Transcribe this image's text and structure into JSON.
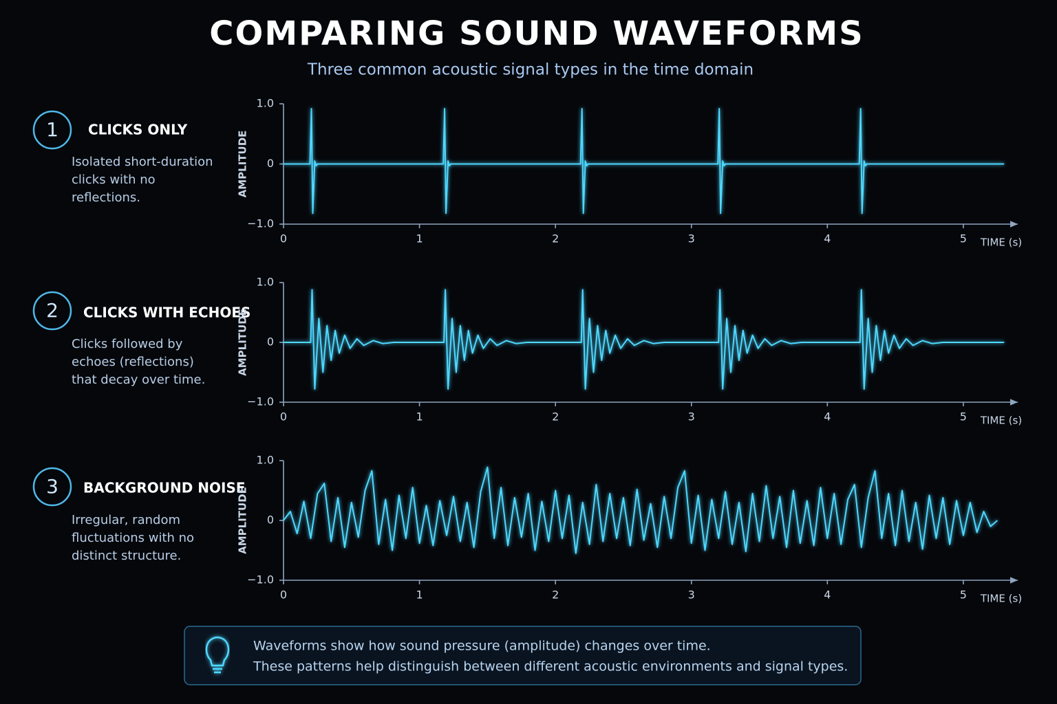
{
  "title": "COMPARING SOUND WAVEFORMS",
  "subtitle": "Three common acoustic signal types in the time domain",
  "panels": [
    {
      "number": "1",
      "title": "CLICKS ONLY",
      "description": [
        "Isolated short-duration",
        "clicks with no",
        "reflections."
      ]
    },
    {
      "number": "2",
      "title": "CLICKS WITH ECHOES",
      "description": [
        "Clicks followed by",
        "echoes (reflections)",
        "that decay over time."
      ]
    },
    {
      "number": "3",
      "title": "BACKGROUND NOISE",
      "description": [
        "Irregular, random",
        "fluctuations with no",
        "distinct structure."
      ]
    }
  ],
  "note": {
    "lines": [
      "Waveforms show how sound pressure (amplitude) changes over time.",
      "These patterns help distinguish between different acoustic environments and signal types."
    ]
  },
  "chart_data": [
    {
      "type": "line",
      "ylabel": "AMPLITUDE",
      "xlabel": "TIME (s)",
      "color": "#4fd8ff",
      "xlim": [
        0,
        5.37
      ],
      "ylim": [
        -1,
        1
      ],
      "xticks": [
        0,
        1,
        2,
        3,
        4,
        5
      ],
      "yticks": [
        {
          "value": 1,
          "label": "1.0"
        },
        0,
        {
          "value": -1,
          "label": "−1.0"
        }
      ],
      "x": [
        0,
        0.195,
        0.205,
        0.215,
        0.23,
        0.24,
        0.25,
        1.175,
        1.185,
        1.195,
        1.21,
        1.22,
        1.23,
        2.185,
        2.195,
        2.205,
        2.22,
        2.23,
        2.24,
        3.195,
        3.205,
        3.215,
        3.23,
        3.24,
        3.25,
        4.235,
        4.245,
        4.255,
        4.27,
        4.28,
        4.29,
        5.3
      ],
      "values": [
        0,
        0,
        0.92,
        -0.82,
        0.05,
        -0.03,
        0,
        0,
        0.92,
        -0.82,
        0.05,
        -0.03,
        0,
        0,
        0.92,
        -0.82,
        0.05,
        -0.03,
        0,
        0,
        0.92,
        -0.82,
        0.05,
        -0.03,
        0,
        0,
        0.92,
        -0.82,
        0.05,
        -0.03,
        0,
        0
      ]
    },
    {
      "type": "line",
      "ylabel": "AMPLITUDE",
      "xlabel": "TIME (s)",
      "color": "#4fd8ff",
      "xlim": [
        0,
        5.37
      ],
      "ylim": [
        -1,
        1
      ],
      "xticks": [
        0,
        1,
        2,
        3,
        4,
        5
      ],
      "yticks": [
        {
          "value": 1,
          "label": "1.0"
        },
        0,
        {
          "value": -1,
          "label": "−1.0"
        }
      ],
      "x": [
        0,
        0.2,
        0.21,
        0.23,
        0.26,
        0.29,
        0.32,
        0.35,
        0.38,
        0.41,
        0.45,
        0.49,
        0.54,
        0.59,
        0.66,
        0.73,
        0.81,
        1.18,
        1.19,
        1.21,
        1.24,
        1.27,
        1.3,
        1.33,
        1.36,
        1.39,
        1.43,
        1.47,
        1.52,
        1.57,
        1.64,
        1.71,
        1.79,
        2.19,
        2.2,
        2.22,
        2.25,
        2.28,
        2.31,
        2.34,
        2.37,
        2.4,
        2.44,
        2.48,
        2.53,
        2.58,
        2.65,
        2.72,
        2.8,
        3.2,
        3.21,
        3.23,
        3.26,
        3.29,
        3.32,
        3.35,
        3.38,
        3.41,
        3.45,
        3.49,
        3.54,
        3.59,
        3.66,
        3.73,
        3.81,
        4.24,
        4.25,
        4.27,
        4.3,
        4.33,
        4.36,
        4.39,
        4.42,
        4.45,
        4.49,
        4.53,
        4.58,
        4.63,
        4.7,
        4.77,
        4.85,
        5.3
      ],
      "values": [
        0,
        0,
        0.88,
        -0.78,
        0.4,
        -0.5,
        0.28,
        -0.3,
        0.2,
        -0.18,
        0.12,
        -0.1,
        0.06,
        -0.05,
        0.03,
        -0.02,
        0,
        0,
        0.88,
        -0.78,
        0.4,
        -0.5,
        0.28,
        -0.3,
        0.2,
        -0.18,
        0.12,
        -0.1,
        0.06,
        -0.05,
        0.03,
        -0.02,
        0,
        0,
        0.88,
        -0.78,
        0.4,
        -0.5,
        0.28,
        -0.3,
        0.2,
        -0.18,
        0.12,
        -0.1,
        0.06,
        -0.05,
        0.03,
        -0.02,
        0,
        0,
        0.88,
        -0.78,
        0.4,
        -0.5,
        0.28,
        -0.3,
        0.2,
        -0.18,
        0.12,
        -0.1,
        0.06,
        -0.05,
        0.03,
        -0.02,
        0,
        0,
        0.88,
        -0.78,
        0.4,
        -0.5,
        0.28,
        -0.3,
        0.2,
        -0.18,
        0.12,
        -0.1,
        0.06,
        -0.05,
        0.03,
        -0.02,
        0,
        0
      ]
    },
    {
      "type": "line",
      "ylabel": "AMPLITUDE",
      "xlabel": "TIME (s)",
      "color": "#4fd8ff",
      "xlim": [
        0,
        5.37
      ],
      "ylim": [
        -1,
        1
      ],
      "xticks": [
        0,
        1,
        2,
        3,
        4,
        5
      ],
      "yticks": [
        {
          "value": 1,
          "label": "1.0"
        },
        0,
        {
          "value": -1,
          "label": "−1.0"
        }
      ],
      "x": [
        0,
        0.05,
        0.1,
        0.15,
        0.2,
        0.25,
        0.3,
        0.35,
        0.4,
        0.45,
        0.5,
        0.55,
        0.6,
        0.65,
        0.7,
        0.75,
        0.8,
        0.85,
        0.9,
        0.95,
        1,
        1.05,
        1.1,
        1.15,
        1.2,
        1.25,
        1.3,
        1.35,
        1.4,
        1.45,
        1.5,
        1.55,
        1.6,
        1.65,
        1.7,
        1.75,
        1.8,
        1.85,
        1.9,
        1.95,
        2,
        2.05,
        2.1,
        2.15,
        2.2,
        2.25,
        2.3,
        2.35,
        2.4,
        2.45,
        2.5,
        2.55,
        2.6,
        2.65,
        2.7,
        2.75,
        2.8,
        2.85,
        2.9,
        2.95,
        3,
        3.05,
        3.1,
        3.15,
        3.2,
        3.25,
        3.3,
        3.35,
        3.4,
        3.45,
        3.5,
        3.55,
        3.6,
        3.65,
        3.7,
        3.75,
        3.8,
        3.85,
        3.9,
        3.95,
        4,
        4.05,
        4.1,
        4.15,
        4.2,
        4.25,
        4.3,
        4.35,
        4.4,
        4.45,
        4.5,
        4.55,
        4.6,
        4.65,
        4.7,
        4.75,
        4.8,
        4.85,
        4.9,
        4.95,
        5,
        5.05,
        5.1,
        5.15,
        5.2,
        5.25
      ],
      "values": [
        0,
        0.15,
        -0.22,
        0.32,
        -0.3,
        0.45,
        0.62,
        -0.35,
        0.38,
        -0.45,
        0.3,
        -0.28,
        0.5,
        0.83,
        -0.4,
        0.35,
        -0.5,
        0.42,
        -0.3,
        0.55,
        -0.38,
        0.25,
        -0.42,
        0.33,
        -0.25,
        0.4,
        -0.35,
        0.3,
        -0.45,
        0.48,
        0.89,
        -0.3,
        0.55,
        -0.42,
        0.38,
        -0.28,
        0.45,
        -0.5,
        0.32,
        -0.35,
        0.5,
        -0.3,
        0.42,
        -0.55,
        0.3,
        -0.4,
        0.6,
        -0.35,
        0.45,
        -0.3,
        0.38,
        -0.42,
        0.52,
        -0.33,
        0.28,
        -0.45,
        0.4,
        -0.3,
        0.55,
        0.83,
        -0.38,
        0.42,
        -0.5,
        0.35,
        -0.3,
        0.48,
        -0.4,
        0.3,
        -0.52,
        0.45,
        -0.35,
        0.58,
        -0.3,
        0.4,
        -0.45,
        0.5,
        -0.38,
        0.33,
        -0.42,
        0.55,
        -0.3,
        0.45,
        -0.4,
        0.35,
        0.6,
        -0.45,
        0.38,
        0.83,
        -0.3,
        0.45,
        -0.42,
        0.5,
        -0.35,
        0.3,
        -0.48,
        0.42,
        -0.3,
        0.38,
        -0.4,
        0.33,
        -0.25,
        0.3,
        -0.2,
        0.15,
        -0.1,
        0
      ]
    }
  ]
}
